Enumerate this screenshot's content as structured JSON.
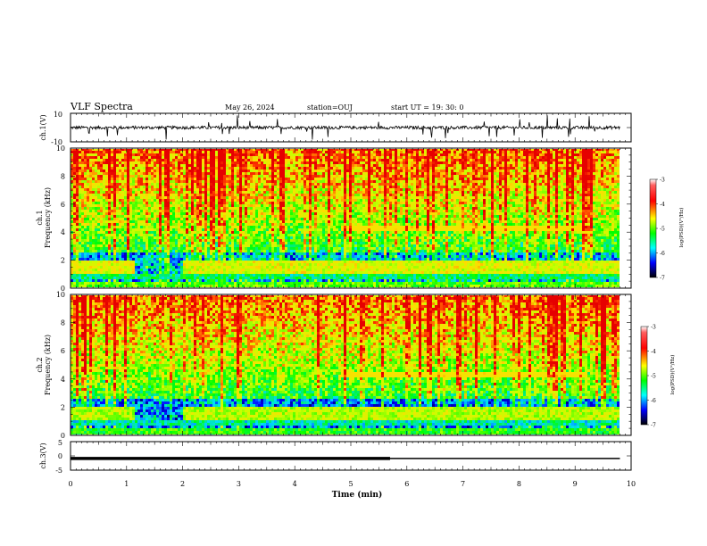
{
  "header": {
    "title": "VLF Spectra",
    "date": "May 26, 2024",
    "station": "station=OUJ",
    "start": "start  UT =  19: 30: 0"
  },
  "colors": {
    "spectrogram_low": "#0000b4",
    "spectrogram_mid": "#00ff00",
    "spectrogram_high": "#ff0000",
    "trace": "#000000"
  },
  "chart_data": [
    {
      "type": "line",
      "name": "ch1-waveform",
      "ylabel": "ch.1(V)",
      "ylim": [
        -10,
        10
      ],
      "yticks": [
        "10",
        "-10"
      ],
      "baseline": 0,
      "xlim": [
        0,
        10
      ]
    },
    {
      "type": "heatmap",
      "name": "ch1-spectrogram",
      "ylabel_line1": "ch.1",
      "ylabel_line2": "Frequency (kHz)",
      "ylim": [
        0,
        10
      ],
      "yticks": [
        0,
        2,
        4,
        6,
        8,
        10
      ],
      "xlim": [
        0,
        9.8
      ],
      "colorbar": {
        "label": "log(PSD)(V²/Hz)",
        "range": [
          -7,
          -3
        ],
        "ticks": [
          "-3",
          "-4",
          "-5",
          "-6",
          "-7"
        ]
      }
    },
    {
      "type": "heatmap",
      "name": "ch2-spectrogram",
      "ylabel_line1": "ch.2",
      "ylabel_line2": "Frequency (kHz)",
      "ylim": [
        0,
        10
      ],
      "yticks": [
        0,
        2,
        4,
        6,
        8,
        10
      ],
      "xlim": [
        0,
        9.8
      ],
      "colorbar": {
        "label": "log(PSD)(V²/Hz)",
        "range": [
          -7,
          -3
        ],
        "ticks": [
          "-3",
          "-4",
          "-5",
          "-6",
          "-7"
        ]
      }
    },
    {
      "type": "line",
      "name": "ch3-trace",
      "ylabel": "ch.3(V)",
      "ylim": [
        -5,
        5
      ],
      "yticks": [
        "5",
        "0",
        "-5"
      ],
      "x": [
        0,
        5.7,
        5.7,
        9.8
      ],
      "y": [
        -0.9,
        -0.9,
        -0.9,
        -0.9
      ],
      "thick_until": 5.7,
      "xlabel": "Time (min)",
      "xlim": [
        0,
        10
      ],
      "xticks": [
        0,
        1,
        2,
        3,
        4,
        5,
        6,
        7,
        8,
        9,
        10
      ]
    }
  ]
}
